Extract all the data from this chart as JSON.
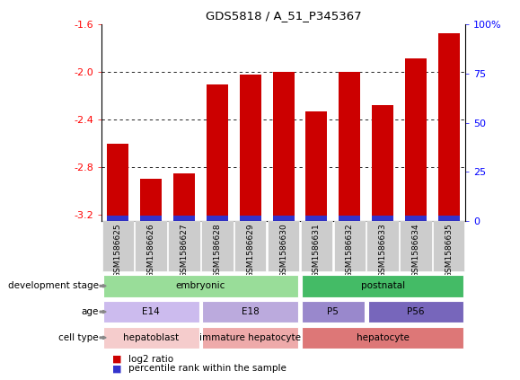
{
  "title": "GDS5818 / A_51_P345367",
  "samples": [
    "GSM1586625",
    "GSM1586626",
    "GSM1586627",
    "GSM1586628",
    "GSM1586629",
    "GSM1586630",
    "GSM1586631",
    "GSM1586632",
    "GSM1586633",
    "GSM1586634",
    "GSM1586635"
  ],
  "log2_values": [
    -2.6,
    -2.9,
    -2.85,
    -2.1,
    -2.02,
    -2.0,
    -2.33,
    -2.0,
    -2.28,
    -1.88,
    -1.67
  ],
  "percentile_values": [
    3,
    3,
    3,
    4,
    4,
    3,
    3,
    3,
    3,
    4,
    4
  ],
  "percentile_heights": [
    0.04,
    0.04,
    0.04,
    0.05,
    0.05,
    0.04,
    0.04,
    0.04,
    0.04,
    0.05,
    0.05
  ],
  "ylim_left": [
    -3.25,
    -1.6
  ],
  "ylim_right": [
    0,
    100
  ],
  "yticks_left": [
    -3.2,
    -2.8,
    -2.4,
    -2.0,
    -1.6
  ],
  "yticks_right": [
    0,
    25,
    50,
    75,
    100
  ],
  "ytick_labels_right": [
    "0",
    "25",
    "50",
    "75",
    "100%"
  ],
  "grid_lines": [
    -2.0,
    -2.4,
    -2.8
  ],
  "bar_color": "#cc0000",
  "blue_color": "#3333cc",
  "development_stage_row": [
    {
      "start": 0,
      "end": 5,
      "color": "#99dd99",
      "label": "embryonic"
    },
    {
      "start": 6,
      "end": 10,
      "color": "#44bb66",
      "label": "postnatal"
    }
  ],
  "age_row": [
    {
      "start": 0,
      "end": 2,
      "color": "#ccbbee",
      "label": "E14"
    },
    {
      "start": 3,
      "end": 5,
      "color": "#bbaadd",
      "label": "E18"
    },
    {
      "start": 6,
      "end": 7,
      "color": "#9988cc",
      "label": "P5"
    },
    {
      "start": 8,
      "end": 10,
      "color": "#7766bb",
      "label": "P56"
    }
  ],
  "cell_type_row": [
    {
      "start": 0,
      "end": 2,
      "color": "#f5cccc",
      "label": "hepatoblast"
    },
    {
      "start": 3,
      "end": 5,
      "color": "#eeaaaa",
      "label": "immature hepatocyte"
    },
    {
      "start": 6,
      "end": 10,
      "color": "#dd7777",
      "label": "hepatocyte"
    }
  ],
  "sample_box_color": "#cccccc",
  "background_color": "#ffffff"
}
